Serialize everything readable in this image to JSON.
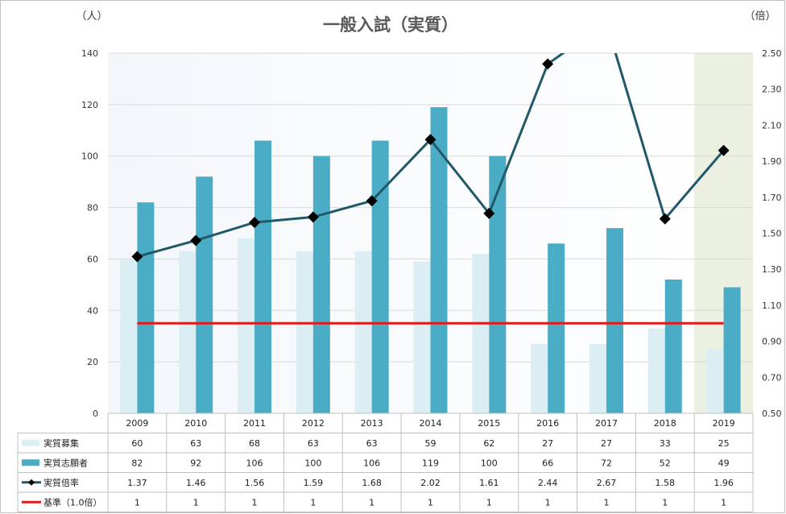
{
  "chart_data": {
    "type": "bar",
    "title": "一般入試（実質）",
    "y_left_unit": "（人）",
    "y_right_unit": "（倍）",
    "categories": [
      "2009",
      "2010",
      "2011",
      "2012",
      "2013",
      "2014",
      "2015",
      "2016",
      "2017",
      "2018",
      "2019"
    ],
    "y_left": {
      "min": 0,
      "max": 140,
      "ticks": [
        "0",
        "20",
        "40",
        "60",
        "80",
        "100",
        "120",
        "140"
      ]
    },
    "y_right": {
      "min": 0.5,
      "max": 2.5,
      "ticks": [
        "0.50",
        "0.70",
        "0.90",
        "1.10",
        "1.30",
        "1.50",
        "1.70",
        "1.90",
        "2.10",
        "2.30",
        "2.50"
      ]
    },
    "highlight_category": "2019",
    "series": [
      {
        "name": "実質募集",
        "type": "bar",
        "axis": "left",
        "color": "#daeef3",
        "values": [
          60,
          63,
          68,
          63,
          63,
          59,
          62,
          27,
          27,
          33,
          25
        ]
      },
      {
        "name": "実質志願者",
        "type": "bar",
        "axis": "left",
        "color": "#4bacc6",
        "values": [
          82,
          92,
          106,
          100,
          106,
          119,
          100,
          66,
          72,
          52,
          49
        ]
      },
      {
        "name": "実質倍率",
        "type": "line",
        "axis": "right",
        "color": "#215968",
        "values": [
          1.37,
          1.46,
          1.56,
          1.59,
          1.68,
          2.02,
          1.61,
          2.44,
          2.67,
          1.58,
          1.96
        ]
      },
      {
        "name": "基準（1.0倍）",
        "type": "line",
        "axis": "right",
        "color": "#e31a1a",
        "values": [
          1,
          1,
          1,
          1,
          1,
          1,
          1,
          1,
          1,
          1,
          1
        ]
      }
    ],
    "table_values": [
      [
        "60",
        "63",
        "68",
        "63",
        "63",
        "59",
        "62",
        "27",
        "27",
        "33",
        "25"
      ],
      [
        "82",
        "92",
        "106",
        "100",
        "106",
        "119",
        "100",
        "66",
        "72",
        "52",
        "49"
      ],
      [
        "1.37",
        "1.46",
        "1.56",
        "1.59",
        "1.68",
        "2.02",
        "1.61",
        "2.44",
        "2.67",
        "1.58",
        "1.96"
      ],
      [
        "1",
        "1",
        "1",
        "1",
        "1",
        "1",
        "1",
        "1",
        "1",
        "1",
        "1"
      ]
    ]
  }
}
